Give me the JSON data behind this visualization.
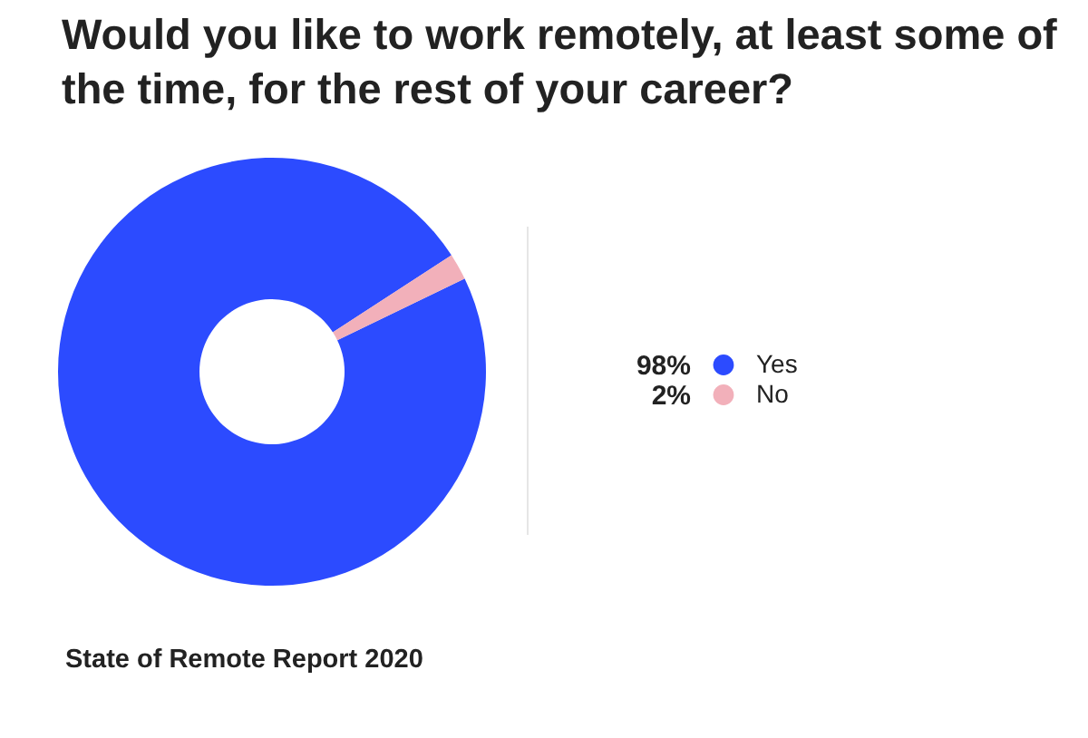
{
  "chart_data": {
    "type": "donut",
    "title": "Would you like to work remotely, at least some of the time, for the rest of your career?",
    "categories": [
      "Yes",
      "No"
    ],
    "values": [
      98,
      2
    ],
    "colors": [
      "#2c4bff",
      "#f2b0ba"
    ],
    "value_labels": [
      "98%",
      "2%"
    ],
    "legend": "right",
    "annotations": [
      "State of Remote Report 2020"
    ]
  }
}
